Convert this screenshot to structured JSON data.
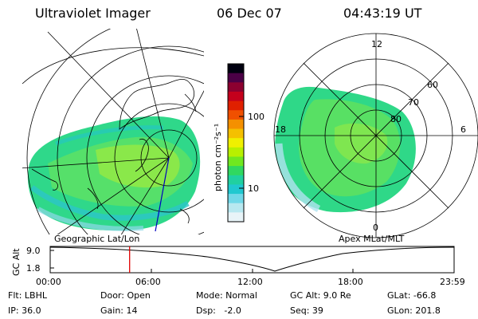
{
  "header": {
    "instrument": "Ultraviolet Imager",
    "date": "06 Dec 07",
    "time": "04:43:19 UT"
  },
  "left_panel": {
    "caption": "Geographic Lat/Lon"
  },
  "right_panel": {
    "caption": "Apex MLat/MLT",
    "mlt_labels": [
      "12",
      "18",
      "6",
      "0"
    ],
    "lat_labels": [
      "60",
      "70",
      "80"
    ]
  },
  "colorbar": {
    "unit_label": "photon cm⁻²s⁻¹",
    "tick_labels": [
      "100",
      "10"
    ],
    "colors": [
      "#000010",
      "#4b0046",
      "#8c0030",
      "#c4001c",
      "#e02000",
      "#f05000",
      "#f49000",
      "#f4c000",
      "#f0f000",
      "#b8f000",
      "#70e820",
      "#30d860",
      "#20d0a0",
      "#20c8d0",
      "#70d8e8",
      "#b8e8f0",
      "#e8f4f8"
    ]
  },
  "altitude_plot": {
    "ylabel": "GC Alt",
    "y_ticks": [
      "9.0",
      "1.8"
    ],
    "x_ticks": [
      "00:00",
      "06:00",
      "12:00",
      "18:00",
      "23:59"
    ],
    "marker_time_hours": 4.72
  },
  "status": {
    "flt": "Flt: LBHL",
    "ip": "IP: 36.0",
    "door": "Door: Open",
    "gain": "Gain: 14",
    "mode": "Mode: Normal",
    "dsp": "Dsp:   -2.0",
    "gc_alt": "GC Alt: 9.0 Re",
    "seq": "Seq: 39",
    "glat": "GLat: -66.8",
    "glon": "GLon: 201.8"
  }
}
